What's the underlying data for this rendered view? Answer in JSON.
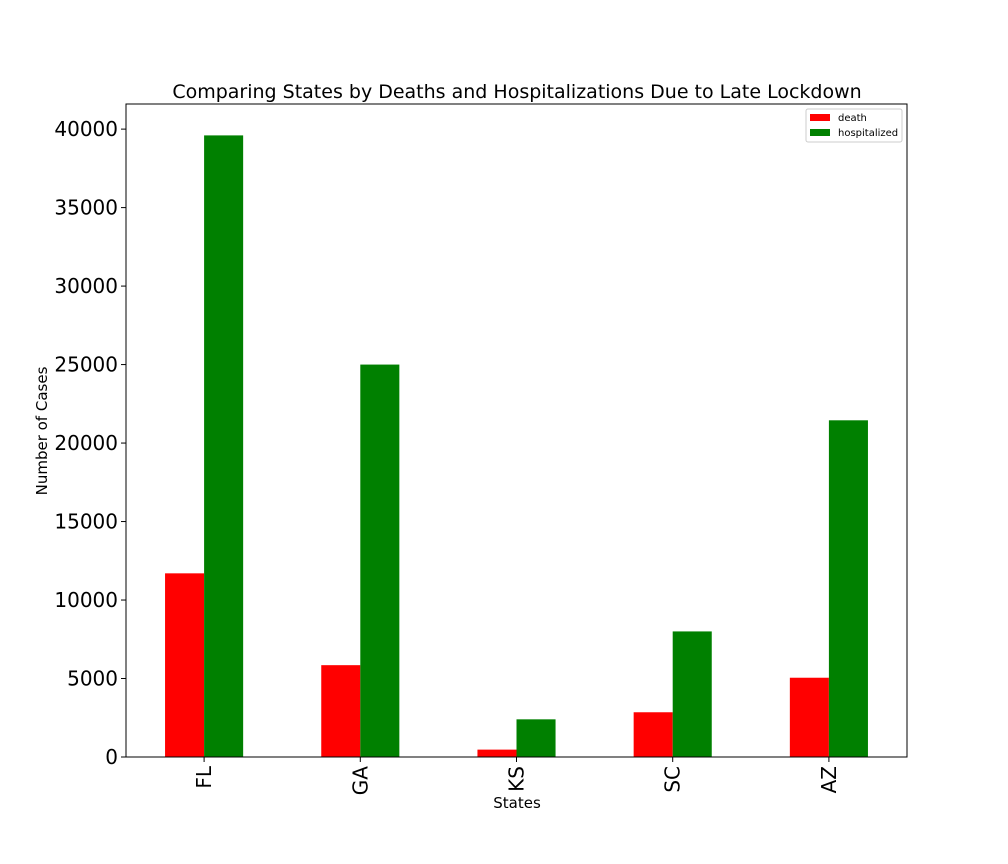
{
  "chart_data": {
    "type": "bar",
    "title": "Comparing States by Deaths and Hospitalizations Due to Late Lockdown",
    "xlabel": "States",
    "ylabel": "Number of Cases",
    "categories": [
      "FL",
      "GA",
      "KS",
      "SC",
      "AZ"
    ],
    "series": [
      {
        "name": "death",
        "color": "#ff0000",
        "values": [
          11700,
          5850,
          470,
          2850,
          5050
        ]
      },
      {
        "name": "hospitalized",
        "color": "#008000",
        "values": [
          39600,
          25000,
          2400,
          8000,
          21450
        ]
      }
    ],
    "ylim": [
      0,
      41600
    ],
    "yticks": [
      0,
      5000,
      10000,
      15000,
      20000,
      25000,
      30000,
      35000,
      40000
    ],
    "grid": false,
    "legend_position": "top-right",
    "xtick_rotation": "vertical"
  }
}
